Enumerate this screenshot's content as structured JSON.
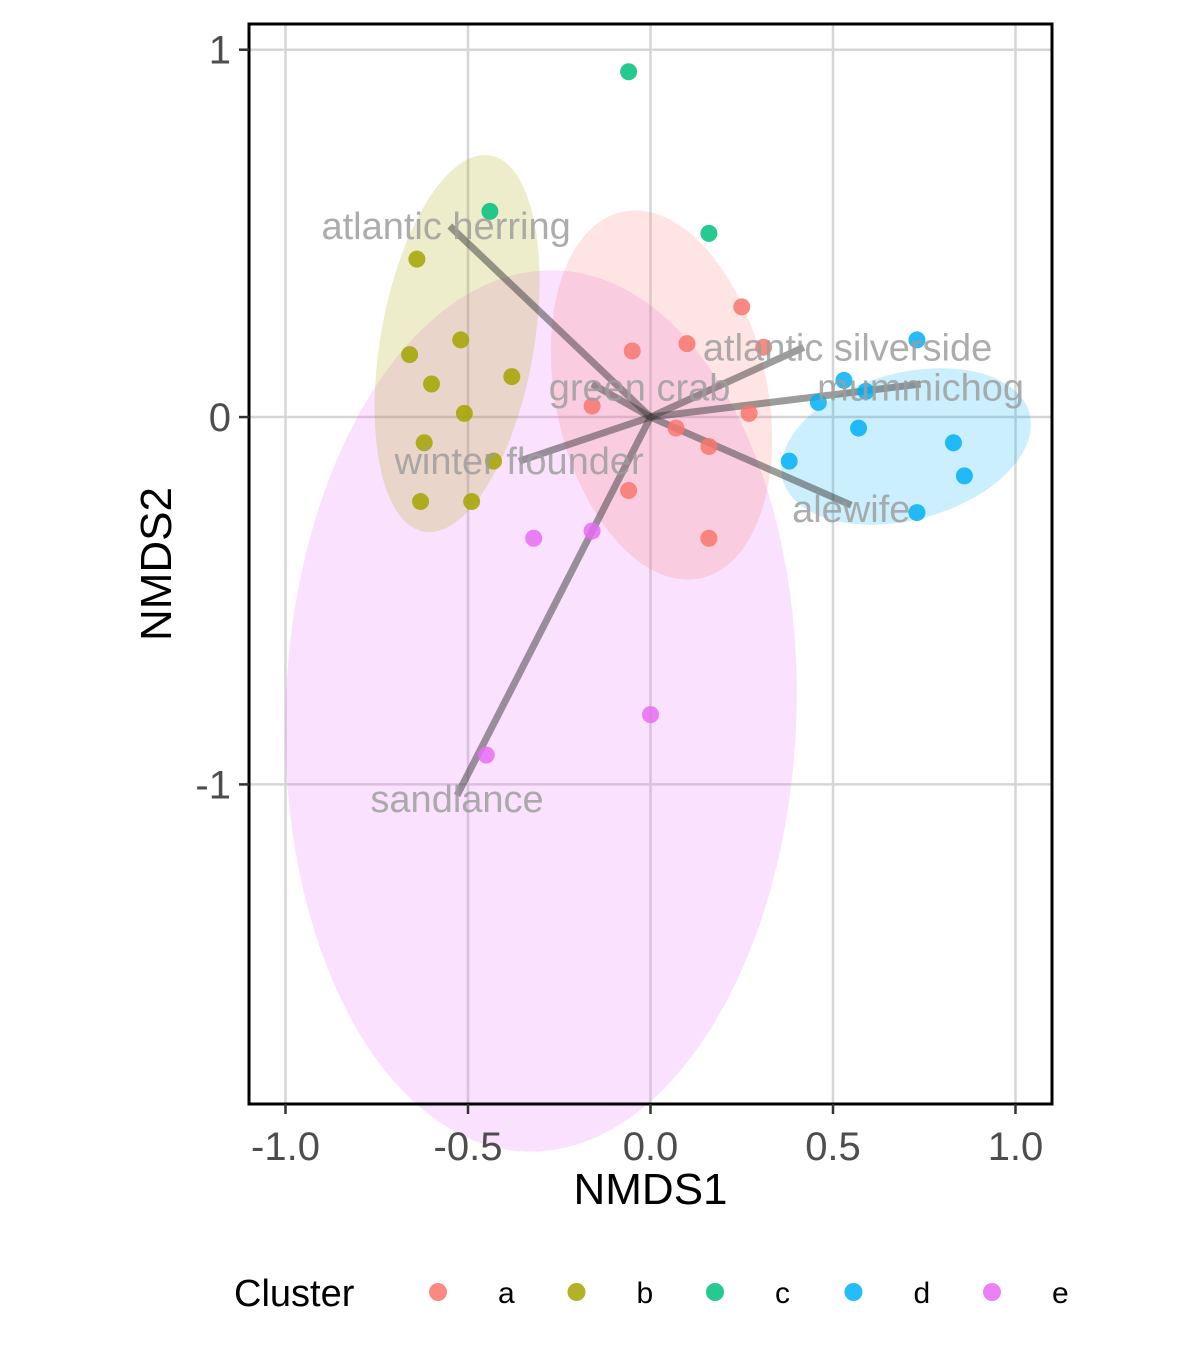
{
  "chart_data": {
    "type": "scatter",
    "title": "",
    "xlabel": "NMDS1",
    "ylabel": "NMDS2",
    "xlim": [
      -1.1,
      1.1
    ],
    "ylim": [
      -1.87,
      1.07
    ],
    "x_ticks": [
      -1.0,
      -0.5,
      0.0,
      0.5,
      1.0
    ],
    "x_tick_labels": [
      "-1.0",
      "-0.5",
      "0.0",
      "0.5",
      "1.0"
    ],
    "y_ticks": [
      -1,
      0,
      1
    ],
    "y_tick_labels": [
      "-1",
      "0",
      "1"
    ],
    "grid": true,
    "legend": {
      "title": "Cluster",
      "position": "bottom",
      "entries": [
        {
          "label": "a",
          "color": "#F8766D"
        },
        {
          "label": "b",
          "color": "#A3A500"
        },
        {
          "label": "c",
          "color": "#00BF7D"
        },
        {
          "label": "d",
          "color": "#00B0F6"
        },
        {
          "label": "e",
          "color": "#E76BF3"
        }
      ]
    },
    "ellipses": [
      {
        "cluster": "e",
        "cx": -0.3,
        "cy": -0.8,
        "rx": 0.7,
        "ry": 1.2,
        "angle": 2,
        "color": "#E76BF3"
      },
      {
        "cluster": "b",
        "cx": -0.53,
        "cy": 0.2,
        "rx": 0.21,
        "ry": 0.52,
        "angle": 10,
        "color": "#A3A500"
      },
      {
        "cluster": "a",
        "cx": 0.03,
        "cy": 0.06,
        "rx": 0.29,
        "ry": 0.51,
        "angle": -12,
        "color": "#F8766D"
      },
      {
        "cluster": "d",
        "cx": 0.7,
        "cy": -0.08,
        "rx": 0.35,
        "ry": 0.2,
        "angle": -15,
        "color": "#00B0F6"
      }
    ],
    "series": [
      {
        "name": "a",
        "color": "#F8766D",
        "points": [
          [
            0.25,
            0.3
          ],
          [
            -0.05,
            0.18
          ],
          [
            0.1,
            0.2
          ],
          [
            0.31,
            0.19
          ],
          [
            -0.16,
            0.03
          ],
          [
            0.27,
            0.01
          ],
          [
            0.07,
            -0.03
          ],
          [
            0.16,
            -0.08
          ],
          [
            -0.06,
            -0.2
          ],
          [
            0.16,
            -0.33
          ]
        ]
      },
      {
        "name": "b",
        "color": "#A3A500",
        "points": [
          [
            -0.64,
            0.43
          ],
          [
            -0.66,
            0.17
          ],
          [
            -0.52,
            0.21
          ],
          [
            -0.6,
            0.09
          ],
          [
            -0.38,
            0.11
          ],
          [
            -0.51,
            0.01
          ],
          [
            -0.62,
            -0.07
          ],
          [
            -0.43,
            -0.12
          ],
          [
            -0.63,
            -0.23
          ],
          [
            -0.49,
            -0.23
          ]
        ]
      },
      {
        "name": "c",
        "color": "#00BF7D",
        "points": [
          [
            -0.06,
            0.94
          ],
          [
            -0.44,
            0.56
          ],
          [
            0.16,
            0.5
          ]
        ]
      },
      {
        "name": "d",
        "color": "#00B0F6",
        "points": [
          [
            0.73,
            0.21
          ],
          [
            0.53,
            0.1
          ],
          [
            0.59,
            0.07
          ],
          [
            0.46,
            0.04
          ],
          [
            0.57,
            -0.03
          ],
          [
            0.83,
            -0.07
          ],
          [
            0.86,
            -0.16
          ],
          [
            0.38,
            -0.12
          ],
          [
            0.73,
            -0.26
          ]
        ]
      },
      {
        "name": "e",
        "color": "#E76BF3",
        "points": [
          [
            -0.32,
            -0.33
          ],
          [
            -0.16,
            -0.31
          ],
          [
            0.0,
            -0.81
          ],
          [
            -0.45,
            -0.92
          ]
        ]
      }
    ],
    "vectors": [
      {
        "label": "atlantic herring",
        "x": -0.55,
        "y": 0.52,
        "lx": -0.56,
        "ly": 0.52
      },
      {
        "label": "atlantic silverside",
        "x": 0.42,
        "y": 0.19,
        "lx": 0.54,
        "ly": 0.19
      },
      {
        "label": "green crab",
        "x": -0.16,
        "y": 0.09,
        "lx": -0.03,
        "ly": 0.08
      },
      {
        "label": "mummichog",
        "x": 0.74,
        "y": 0.09,
        "lx": 0.74,
        "ly": 0.08
      },
      {
        "label": "winter flounder",
        "x": -0.36,
        "y": -0.12,
        "lx": -0.36,
        "ly": -0.12
      },
      {
        "label": "alewife",
        "x": 0.55,
        "y": -0.24,
        "lx": 0.55,
        "ly": -0.25
      },
      {
        "label": "sandlance",
        "x": -0.53,
        "y": -1.03,
        "lx": -0.53,
        "ly": -1.04
      }
    ]
  }
}
